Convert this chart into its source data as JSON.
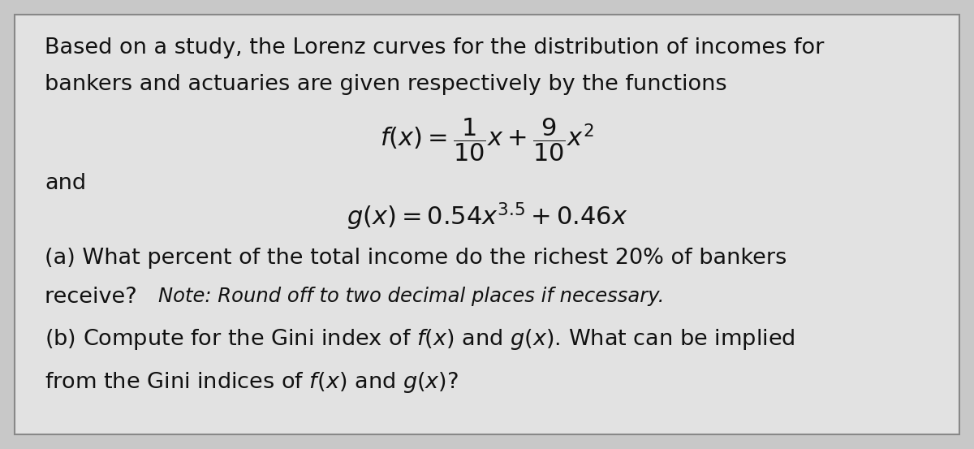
{
  "background_color": "#c8c8c8",
  "panel_color": "#e2e2e2",
  "text_color": "#111111",
  "border_color": "#888888",
  "line1": "Based on a study, the Lorenz curves for the distribution of incomes for",
  "line2": "bankers and actuaries are given respectively by the functions",
  "fx_formula": "$f(x) = \\dfrac{1}{10}x + \\dfrac{9}{10}x^2$",
  "and_text": "and",
  "gx_formula": "$g(x) = 0.54x^{3.5} + 0.46x$",
  "part_a_line1": "(a) What percent of the total income do the richest 20% of bankers",
  "part_a_line2_normal": "receive? ",
  "part_a_line2_italic": "Note: Round off to two decimal places if necessary.",
  "part_b_line1": "(b) Compute for the Gini index of $f(x)$ and $g(x)$. What can be implied",
  "part_b_line2": "from the Gini indices of $f(x)$ and $g(x)$?",
  "figsize": [
    12.0,
    5.53
  ],
  "dpi": 100
}
